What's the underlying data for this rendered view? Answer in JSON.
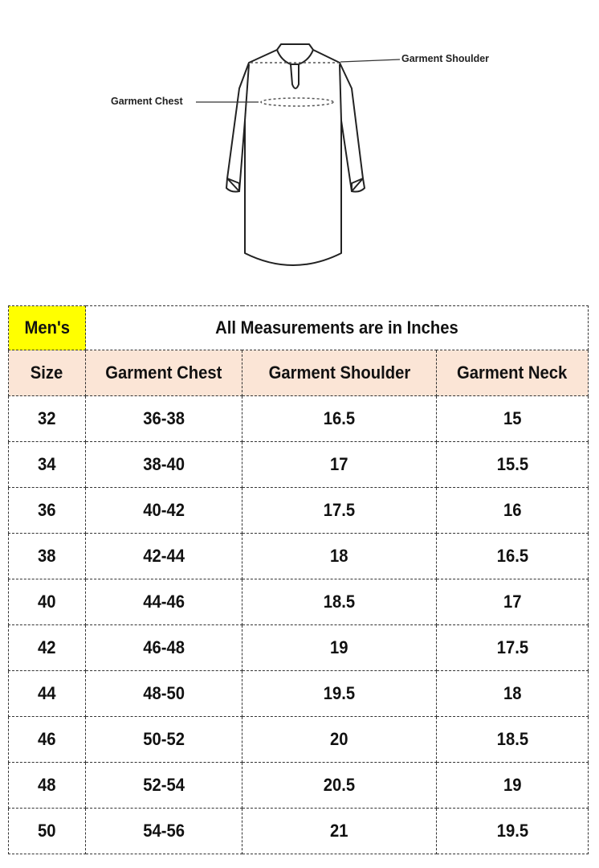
{
  "figure": {
    "labels": {
      "shoulder": "Garment Shoulder",
      "chest": "Garment Chest"
    }
  },
  "table": {
    "gender_label": "Men's",
    "gender_highlight_color": "#ffff00",
    "header_bg_color": "#fbe5d6",
    "title": "All Measurements are in Inches",
    "columns": [
      "Size",
      "Garment Chest",
      "Garment Shoulder",
      "Garment Neck"
    ],
    "rows": [
      [
        "32",
        "36-38",
        "16.5",
        "15"
      ],
      [
        "34",
        "38-40",
        "17",
        "15.5"
      ],
      [
        "36",
        "40-42",
        "17.5",
        "16"
      ],
      [
        "38",
        "42-44",
        "18",
        "16.5"
      ],
      [
        "40",
        "44-46",
        "18.5",
        "17"
      ],
      [
        "42",
        "46-48",
        "19",
        "17.5"
      ],
      [
        "44",
        "48-50",
        "19.5",
        "18"
      ],
      [
        "46",
        "50-52",
        "20",
        "18.5"
      ],
      [
        "48",
        "52-54",
        "20.5",
        "19"
      ],
      [
        "50",
        "54-56",
        "21",
        "19.5"
      ]
    ]
  }
}
